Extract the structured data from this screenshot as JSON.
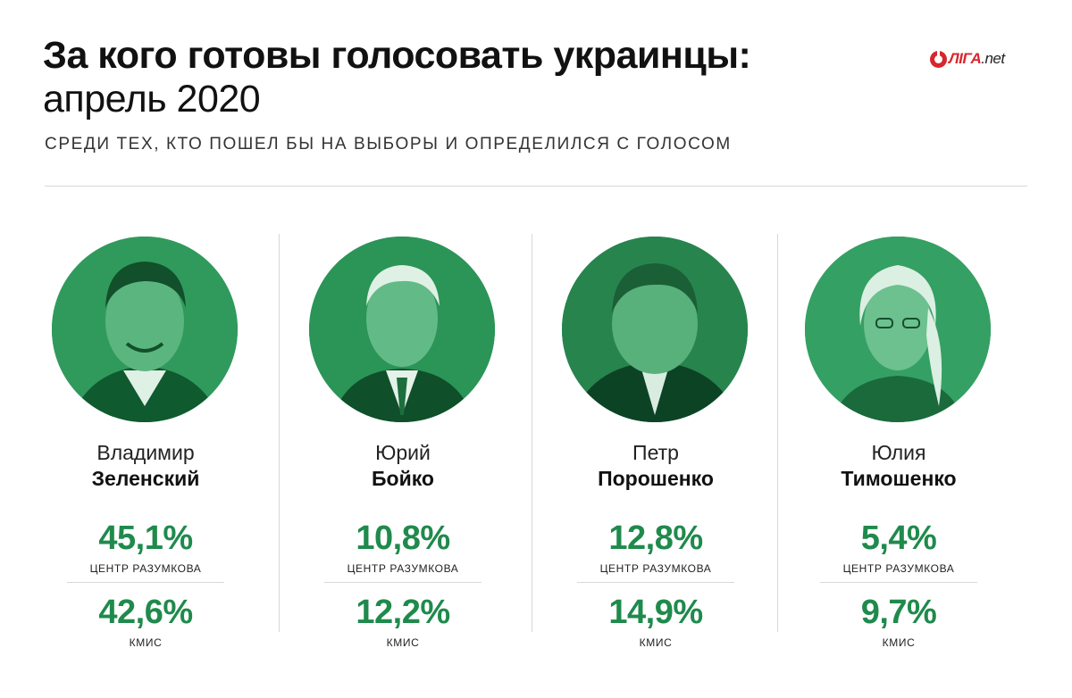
{
  "header": {
    "title_bold": "За кого готовы голосовать украинцы:",
    "title_light": "апрель 2020",
    "subtitle": "СРЕДИ ТЕХ, КТО ПОШЕЛ БЫ НА ВЫБОРЫ И ОПРЕДЕЛИЛСЯ С ГОЛОСОМ"
  },
  "logo": {
    "brand": "ЛIГА",
    "suffix": ".net",
    "color": "#d8262d"
  },
  "colors": {
    "accent": "#1f8a4c",
    "photo_tint": "#1f8a4c",
    "rule": "#d8d8d8"
  },
  "candidates": [
    {
      "first_name": "Владимир",
      "last_name": "Зеленский",
      "poll_a": {
        "value": "45,1%",
        "source": "ЦЕНТР РАЗУМКОВА"
      },
      "poll_b": {
        "value": "42,6%",
        "source": "КМИС"
      }
    },
    {
      "first_name": "Юрий",
      "last_name": "Бойко",
      "poll_a": {
        "value": "10,8%",
        "source": "ЦЕНТР РАЗУМКОВА"
      },
      "poll_b": {
        "value": "12,2%",
        "source": "КМИС"
      }
    },
    {
      "first_name": "Петр",
      "last_name": "Порошенко",
      "poll_a": {
        "value": "12,8%",
        "source": "ЦЕНТР РАЗУМКОВА"
      },
      "poll_b": {
        "value": "14,9%",
        "source": "КМИС"
      }
    },
    {
      "first_name": "Юлия",
      "last_name": "Тимошенко",
      "poll_a": {
        "value": "5,4%",
        "source": "ЦЕНТР РАЗУМКОВА"
      },
      "poll_b": {
        "value": "9,7%",
        "source": "КМИС"
      }
    }
  ]
}
